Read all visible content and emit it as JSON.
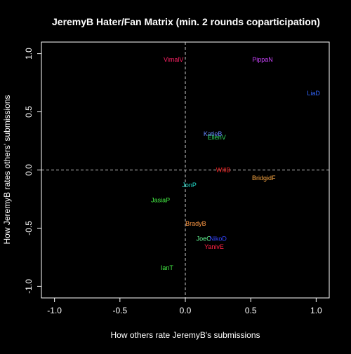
{
  "chart_data": {
    "type": "scatter",
    "title": "JeremyB Hater/Fan Matrix (min. 2 rounds coparticipation)",
    "xlabel": "How others rate JeremyB's submissions",
    "ylabel": "How JeremyB rates others' submissions",
    "xlim": [
      -1.1,
      1.1
    ],
    "ylim": [
      -1.1,
      1.1
    ],
    "xticks": [
      -1.0,
      -0.5,
      0.0,
      0.5,
      1.0
    ],
    "yticks": [
      -1.0,
      -0.5,
      0.0,
      0.5,
      1.0
    ],
    "xtick_labels": [
      "-1.0",
      "-0.5",
      "0.0",
      "0.5",
      "1.0"
    ],
    "ytick_labels": [
      "-1.0",
      "-0.5",
      "0.0",
      "0.5",
      "1.0"
    ],
    "reference_lines": {
      "x": 0,
      "y": 0,
      "style": "dashed"
    },
    "background": "#000000",
    "foreground": "#ffffff",
    "points": [
      {
        "label": "VimalV",
        "x": -0.09,
        "y": 0.95,
        "color": "#ff2266"
      },
      {
        "label": "PippaN",
        "x": 0.59,
        "y": 0.95,
        "color": "#cc44ff"
      },
      {
        "label": "LiaD",
        "x": 0.98,
        "y": 0.66,
        "color": "#3366ff"
      },
      {
        "label": "KatieB",
        "x": 0.21,
        "y": 0.31,
        "color": "#6688ff"
      },
      {
        "label": "EllenV",
        "x": 0.24,
        "y": 0.28,
        "color": "#33dd66"
      },
      {
        "label": "WillB",
        "x": 0.29,
        "y": 0.0,
        "color": "#ee2222"
      },
      {
        "label": "BridgidF",
        "x": 0.6,
        "y": -0.07,
        "color": "#ffaa44"
      },
      {
        "label": "JonP",
        "x": 0.03,
        "y": -0.13,
        "color": "#22ddcc"
      },
      {
        "label": "JasiaP",
        "x": -0.19,
        "y": -0.26,
        "color": "#44ee44"
      },
      {
        "label": "BradyB",
        "x": 0.08,
        "y": -0.46,
        "color": "#ff9944"
      },
      {
        "label": "JoeC",
        "x": 0.14,
        "y": -0.59,
        "color": "#66ff99"
      },
      {
        "label": "NikoD",
        "x": 0.25,
        "y": -0.59,
        "color": "#3344ff"
      },
      {
        "label": "YanivE",
        "x": 0.22,
        "y": -0.66,
        "color": "#ff2244"
      },
      {
        "label": "IanT",
        "x": -0.14,
        "y": -0.84,
        "color": "#44ee44"
      }
    ]
  }
}
